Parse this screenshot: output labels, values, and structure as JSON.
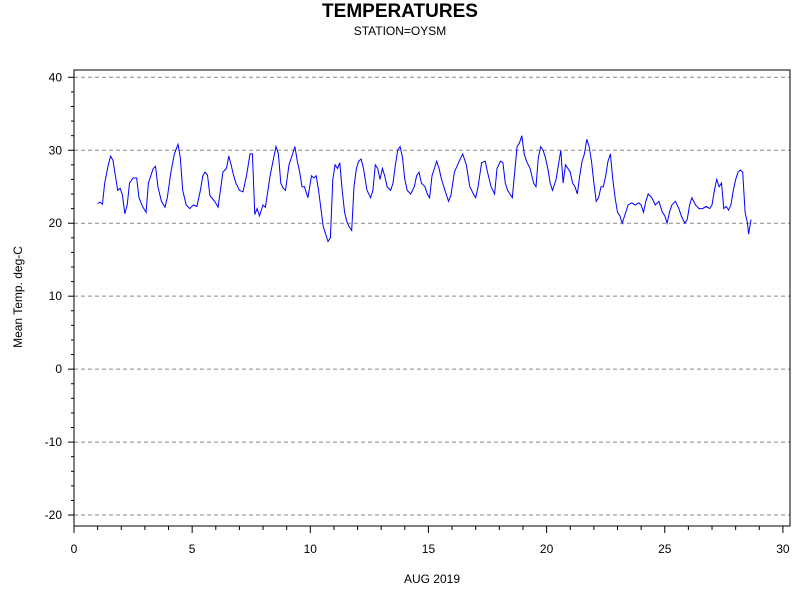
{
  "chart_data": {
    "type": "line",
    "title": "TEMPERATURES",
    "subtitle": "STATION=OYSM",
    "xlabel": "AUG 2019",
    "ylabel": "Mean Temp. deg-C",
    "xlim": [
      0,
      30.3
    ],
    "ylim": [
      -21.5,
      41
    ],
    "x_ticks": [
      0,
      5,
      10,
      15,
      20,
      25,
      30
    ],
    "y_ticks": [
      -20,
      -10,
      0,
      10,
      20,
      30,
      40
    ],
    "grid": "horizontal dashed",
    "line_color": "#0000ff",
    "series": [
      {
        "points": [
          [
            1.0,
            22.7
          ],
          [
            1.1,
            22.9
          ],
          [
            1.2,
            22.6
          ],
          [
            1.3,
            25.5
          ],
          [
            1.45,
            28.0
          ],
          [
            1.55,
            29.2
          ],
          [
            1.65,
            28.6
          ],
          [
            1.75,
            26.5
          ],
          [
            1.85,
            24.5
          ],
          [
            1.95,
            24.8
          ],
          [
            2.05,
            23.9
          ],
          [
            2.15,
            21.3
          ],
          [
            2.25,
            22.5
          ],
          [
            2.35,
            25.5
          ],
          [
            2.5,
            26.2
          ],
          [
            2.65,
            26.2
          ],
          [
            2.75,
            23.5
          ],
          [
            2.9,
            22.3
          ],
          [
            3.05,
            21.5
          ],
          [
            3.15,
            25.5
          ],
          [
            3.25,
            26.5
          ],
          [
            3.35,
            27.5
          ],
          [
            3.45,
            27.8
          ],
          [
            3.55,
            25.0
          ],
          [
            3.7,
            23.0
          ],
          [
            3.85,
            22.2
          ],
          [
            3.95,
            23.5
          ],
          [
            4.1,
            27.0
          ],
          [
            4.25,
            29.5
          ],
          [
            4.4,
            30.8
          ],
          [
            4.5,
            29.0
          ],
          [
            4.6,
            24.5
          ],
          [
            4.75,
            22.5
          ],
          [
            4.9,
            22.0
          ],
          [
            5.05,
            22.5
          ],
          [
            5.2,
            22.3
          ],
          [
            5.35,
            24.5
          ],
          [
            5.45,
            26.5
          ],
          [
            5.55,
            27.0
          ],
          [
            5.65,
            26.6
          ],
          [
            5.75,
            23.8
          ],
          [
            5.95,
            23.0
          ],
          [
            6.1,
            22.2
          ],
          [
            6.3,
            27.0
          ],
          [
            6.45,
            27.5
          ],
          [
            6.55,
            29.2
          ],
          [
            6.65,
            28.0
          ],
          [
            6.75,
            26.6
          ],
          [
            6.85,
            25.5
          ],
          [
            7.0,
            24.5
          ],
          [
            7.15,
            24.3
          ],
          [
            7.3,
            26.5
          ],
          [
            7.45,
            29.5
          ],
          [
            7.55,
            29.5
          ],
          [
            7.65,
            21.2
          ],
          [
            7.75,
            22.0
          ],
          [
            7.85,
            21.0
          ],
          [
            8.0,
            22.5
          ],
          [
            8.1,
            22.2
          ],
          [
            8.3,
            26.5
          ],
          [
            8.45,
            29.0
          ],
          [
            8.55,
            30.5
          ],
          [
            8.65,
            29.5
          ],
          [
            8.75,
            25.5
          ],
          [
            8.85,
            24.8
          ],
          [
            8.95,
            24.5
          ],
          [
            9.1,
            28.0
          ],
          [
            9.25,
            29.5
          ],
          [
            9.35,
            30.5
          ],
          [
            9.45,
            28.5
          ],
          [
            9.55,
            27.0
          ],
          [
            9.65,
            25.0
          ],
          [
            9.75,
            25.0
          ],
          [
            9.9,
            23.5
          ],
          [
            10.05,
            26.5
          ],
          [
            10.15,
            26.2
          ],
          [
            10.25,
            26.5
          ],
          [
            10.35,
            24.5
          ],
          [
            10.45,
            22.0
          ],
          [
            10.55,
            19.5
          ],
          [
            10.65,
            18.5
          ],
          [
            10.75,
            17.5
          ],
          [
            10.85,
            18.0
          ],
          [
            10.95,
            26.0
          ],
          [
            11.05,
            28.0
          ],
          [
            11.15,
            27.5
          ],
          [
            11.25,
            28.3
          ],
          [
            11.35,
            24.5
          ],
          [
            11.45,
            21.5
          ],
          [
            11.55,
            20.2
          ],
          [
            11.65,
            19.5
          ],
          [
            11.75,
            19.0
          ],
          [
            11.85,
            25.0
          ],
          [
            11.95,
            27.5
          ],
          [
            12.05,
            28.5
          ],
          [
            12.15,
            28.8
          ],
          [
            12.25,
            27.5
          ],
          [
            12.4,
            24.5
          ],
          [
            12.55,
            23.5
          ],
          [
            12.65,
            24.5
          ],
          [
            12.75,
            28.0
          ],
          [
            12.85,
            27.5
          ],
          [
            12.95,
            26.0
          ],
          [
            13.05,
            27.5
          ],
          [
            13.15,
            26.5
          ],
          [
            13.25,
            25.0
          ],
          [
            13.4,
            24.5
          ],
          [
            13.5,
            25.5
          ],
          [
            13.6,
            28.0
          ],
          [
            13.7,
            30.0
          ],
          [
            13.8,
            30.5
          ],
          [
            13.9,
            29.0
          ],
          [
            14.0,
            26.0
          ],
          [
            14.1,
            24.5
          ],
          [
            14.25,
            24.0
          ],
          [
            14.4,
            25.0
          ],
          [
            14.5,
            26.5
          ],
          [
            14.6,
            27.0
          ],
          [
            14.7,
            25.5
          ],
          [
            14.85,
            25.0
          ],
          [
            14.95,
            24.0
          ],
          [
            15.05,
            23.5
          ],
          [
            15.15,
            26.5
          ],
          [
            15.25,
            27.5
          ],
          [
            15.35,
            28.5
          ],
          [
            15.45,
            27.5
          ],
          [
            15.55,
            26.0
          ],
          [
            15.7,
            24.5
          ],
          [
            15.85,
            23.0
          ],
          [
            15.95,
            23.8
          ],
          [
            16.1,
            27.0
          ],
          [
            16.3,
            28.5
          ],
          [
            16.45,
            29.5
          ],
          [
            16.6,
            28.0
          ],
          [
            16.75,
            25.0
          ],
          [
            16.9,
            24.0
          ],
          [
            17.0,
            23.5
          ],
          [
            17.1,
            25.0
          ],
          [
            17.25,
            28.3
          ],
          [
            17.4,
            28.5
          ],
          [
            17.5,
            27.0
          ],
          [
            17.65,
            25.0
          ],
          [
            17.8,
            24.0
          ],
          [
            17.9,
            27.5
          ],
          [
            18.05,
            28.5
          ],
          [
            18.15,
            28.3
          ],
          [
            18.25,
            25.5
          ],
          [
            18.35,
            24.5
          ],
          [
            18.45,
            24.0
          ],
          [
            18.55,
            23.5
          ],
          [
            18.65,
            27.0
          ],
          [
            18.75,
            30.5
          ],
          [
            18.85,
            31.0
          ],
          [
            18.95,
            32.0
          ],
          [
            19.05,
            29.5
          ],
          [
            19.15,
            28.5
          ],
          [
            19.3,
            27.5
          ],
          [
            19.45,
            25.5
          ],
          [
            19.55,
            25.0
          ],
          [
            19.65,
            29.0
          ],
          [
            19.75,
            30.5
          ],
          [
            19.85,
            30.0
          ],
          [
            19.95,
            29.0
          ],
          [
            20.05,
            27.5
          ],
          [
            20.15,
            25.5
          ],
          [
            20.25,
            24.5
          ],
          [
            20.4,
            26.0
          ],
          [
            20.5,
            28.0
          ],
          [
            20.6,
            30.0
          ],
          [
            20.7,
            25.5
          ],
          [
            20.8,
            28.0
          ],
          [
            20.9,
            27.5
          ],
          [
            21.0,
            27.0
          ],
          [
            21.1,
            25.5
          ],
          [
            21.2,
            25.0
          ],
          [
            21.3,
            24.0
          ],
          [
            21.4,
            26.5
          ],
          [
            21.5,
            28.5
          ],
          [
            21.6,
            29.5
          ],
          [
            21.7,
            31.5
          ],
          [
            21.8,
            30.5
          ],
          [
            21.9,
            28.5
          ],
          [
            22.0,
            25.5
          ],
          [
            22.1,
            23.0
          ],
          [
            22.2,
            23.5
          ],
          [
            22.3,
            25.0
          ],
          [
            22.4,
            25.0
          ],
          [
            22.5,
            26.5
          ],
          [
            22.6,
            28.5
          ],
          [
            22.7,
            29.5
          ],
          [
            22.8,
            26.0
          ],
          [
            22.9,
            23.5
          ],
          [
            23.0,
            21.5
          ],
          [
            23.1,
            21.0
          ],
          [
            23.2,
            20.0
          ],
          [
            23.3,
            21.0
          ],
          [
            23.45,
            22.5
          ],
          [
            23.6,
            22.8
          ],
          [
            23.75,
            22.5
          ],
          [
            23.9,
            22.8
          ],
          [
            24.0,
            22.5
          ],
          [
            24.1,
            21.5
          ],
          [
            24.2,
            23.0
          ],
          [
            24.3,
            24.0
          ],
          [
            24.45,
            23.5
          ],
          [
            24.6,
            22.5
          ],
          [
            24.75,
            23.0
          ],
          [
            24.9,
            21.5
          ],
          [
            25.0,
            21.0
          ],
          [
            25.1,
            20.0
          ],
          [
            25.2,
            21.5
          ],
          [
            25.3,
            22.5
          ],
          [
            25.45,
            23.0
          ],
          [
            25.6,
            22.0
          ],
          [
            25.7,
            21.0
          ],
          [
            25.85,
            20.0
          ],
          [
            25.95,
            20.5
          ],
          [
            26.05,
            22.5
          ],
          [
            26.15,
            23.5
          ],
          [
            26.3,
            22.5
          ],
          [
            26.45,
            22.0
          ],
          [
            26.6,
            22.0
          ],
          [
            26.75,
            22.3
          ],
          [
            26.9,
            22.0
          ],
          [
            27.0,
            22.5
          ],
          [
            27.1,
            24.5
          ],
          [
            27.2,
            26.0
          ],
          [
            27.3,
            25.0
          ],
          [
            27.4,
            25.5
          ],
          [
            27.5,
            22.0
          ],
          [
            27.6,
            22.3
          ],
          [
            27.7,
            21.8
          ],
          [
            27.8,
            22.5
          ],
          [
            27.9,
            24.5
          ],
          [
            28.0,
            26.0
          ],
          [
            28.1,
            27.0
          ],
          [
            28.2,
            27.3
          ],
          [
            28.3,
            27.0
          ],
          [
            28.4,
            21.5
          ],
          [
            28.5,
            20.0
          ],
          [
            28.55,
            18.5
          ],
          [
            28.65,
            20.5
          ]
        ]
      }
    ]
  }
}
